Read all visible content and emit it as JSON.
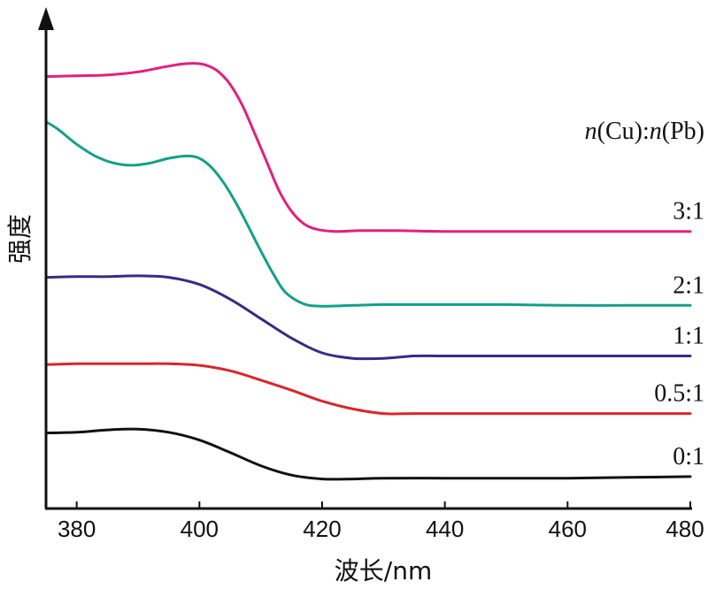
{
  "chart_data": {
    "type": "line",
    "xlabel": "波长/nm",
    "ylabel": "强度",
    "xlim": [
      375,
      480
    ],
    "xticks": [
      380,
      400,
      420,
      440,
      460,
      480
    ],
    "legend_title": {
      "prefix_n1": "n",
      "cu": "(Cu)",
      "sep": ":",
      "prefix_n2": "n",
      "pb": "(Pb)"
    },
    "series": [
      {
        "name": "3:1",
        "color": "#e0217f",
        "x": [
          375,
          380,
          385,
          390,
          394,
          397,
          399,
          401,
          403,
          405,
          407,
          409,
          411,
          413,
          415,
          417,
          419,
          422,
          426,
          432,
          440,
          450,
          460,
          470,
          480
        ],
        "y": [
          5.55,
          5.56,
          5.57,
          5.61,
          5.67,
          5.71,
          5.72,
          5.7,
          5.62,
          5.45,
          5.18,
          4.82,
          4.45,
          4.08,
          3.82,
          3.66,
          3.59,
          3.56,
          3.57,
          3.57,
          3.56,
          3.56,
          3.56,
          3.56,
          3.56
        ]
      },
      {
        "name": "2:1",
        "color": "#13a08a",
        "x": [
          375,
          377,
          380,
          383,
          386,
          389,
          392,
          395,
          398,
          400,
          402,
          404,
          406,
          408,
          410,
          412,
          414,
          417,
          420,
          425,
          430,
          440,
          450,
          460,
          470,
          480
        ],
        "y": [
          4.97,
          4.87,
          4.68,
          4.53,
          4.44,
          4.41,
          4.44,
          4.5,
          4.53,
          4.5,
          4.38,
          4.18,
          3.92,
          3.62,
          3.31,
          3.02,
          2.78,
          2.63,
          2.6,
          2.61,
          2.62,
          2.62,
          2.62,
          2.61,
          2.61,
          2.61
        ]
      },
      {
        "name": "1:1",
        "color": "#3a2a85",
        "x": [
          375,
          380,
          385,
          390,
          395,
          400,
          405,
          410,
          415,
          420,
          425,
          430,
          435,
          440,
          450,
          460,
          470,
          480
        ],
        "y": [
          2.97,
          2.98,
          2.98,
          2.99,
          2.97,
          2.88,
          2.69,
          2.44,
          2.19,
          2.0,
          1.93,
          1.93,
          1.96,
          1.96,
          1.96,
          1.96,
          1.96,
          1.96
        ]
      },
      {
        "name": "0.5:1",
        "color": "#d9262b",
        "x": [
          375,
          380,
          385,
          390,
          395,
          400,
          405,
          410,
          415,
          420,
          425,
          430,
          435,
          440,
          450,
          460,
          470,
          480
        ],
        "y": [
          1.85,
          1.86,
          1.86,
          1.86,
          1.86,
          1.84,
          1.77,
          1.65,
          1.52,
          1.38,
          1.28,
          1.22,
          1.22,
          1.22,
          1.22,
          1.22,
          1.22,
          1.22
        ]
      },
      {
        "name": "0:1",
        "color": "#111111",
        "x": [
          375,
          380,
          385,
          390,
          395,
          400,
          405,
          410,
          415,
          420,
          425,
          430,
          440,
          450,
          460,
          470,
          480
        ],
        "y": [
          0.97,
          0.98,
          1.01,
          1.02,
          0.98,
          0.88,
          0.72,
          0.55,
          0.43,
          0.38,
          0.38,
          0.39,
          0.39,
          0.39,
          0.39,
          0.4,
          0.41
        ]
      }
    ]
  }
}
